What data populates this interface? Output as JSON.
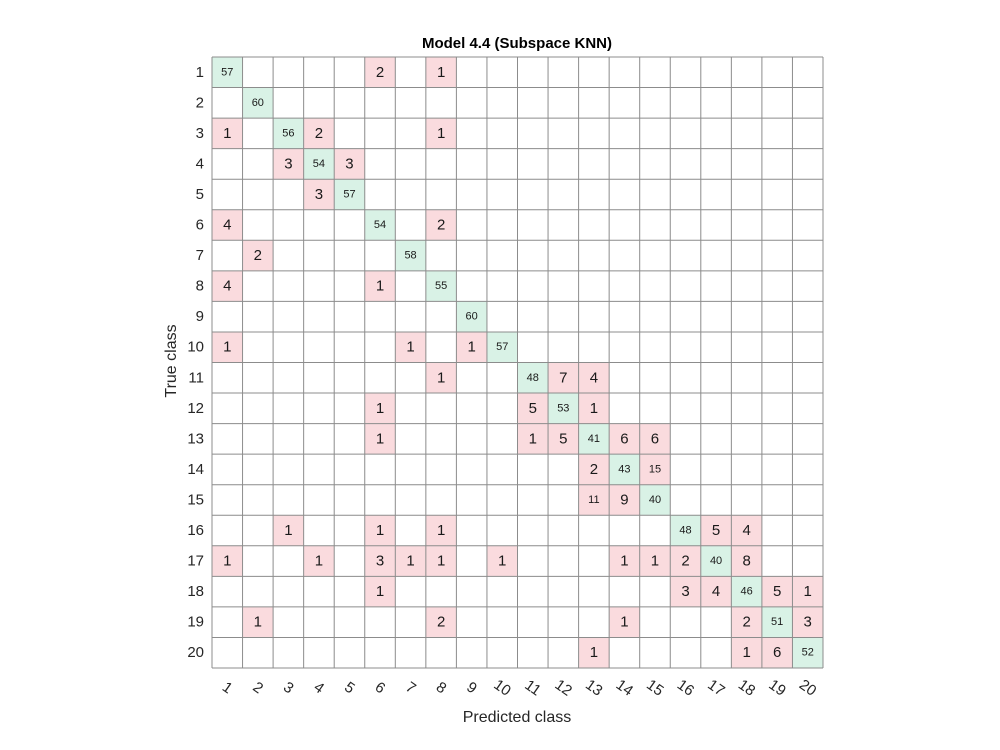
{
  "chart_data": {
    "type": "heatmap",
    "title": "Model 4.4 (Subspace KNN)",
    "xlabel": "Predicted class",
    "ylabel": "True class",
    "classes": [
      "1",
      "2",
      "3",
      "4",
      "5",
      "6",
      "7",
      "8",
      "9",
      "10",
      "11",
      "12",
      "13",
      "14",
      "15",
      "16",
      "17",
      "18",
      "19",
      "20"
    ],
    "cells": [
      [
        1,
        1,
        57
      ],
      [
        1,
        6,
        2
      ],
      [
        1,
        8,
        1
      ],
      [
        2,
        2,
        60
      ],
      [
        3,
        1,
        1
      ],
      [
        3,
        3,
        56
      ],
      [
        3,
        4,
        2
      ],
      [
        3,
        8,
        1
      ],
      [
        4,
        3,
        3
      ],
      [
        4,
        4,
        54
      ],
      [
        4,
        5,
        3
      ],
      [
        5,
        4,
        3
      ],
      [
        5,
        5,
        57
      ],
      [
        6,
        1,
        4
      ],
      [
        6,
        6,
        54
      ],
      [
        6,
        8,
        2
      ],
      [
        7,
        2,
        2
      ],
      [
        7,
        7,
        58
      ],
      [
        8,
        1,
        4
      ],
      [
        8,
        6,
        1
      ],
      [
        8,
        8,
        55
      ],
      [
        9,
        9,
        60
      ],
      [
        10,
        1,
        1
      ],
      [
        10,
        7,
        1
      ],
      [
        10,
        9,
        1
      ],
      [
        10,
        10,
        57
      ],
      [
        11,
        8,
        1
      ],
      [
        11,
        11,
        48
      ],
      [
        11,
        12,
        7
      ],
      [
        11,
        13,
        4
      ],
      [
        12,
        6,
        1
      ],
      [
        12,
        11,
        5
      ],
      [
        12,
        12,
        53
      ],
      [
        12,
        13,
        1
      ],
      [
        13,
        6,
        1
      ],
      [
        13,
        11,
        1
      ],
      [
        13,
        12,
        5
      ],
      [
        13,
        13,
        41
      ],
      [
        13,
        14,
        6
      ],
      [
        13,
        15,
        6
      ],
      [
        14,
        13,
        2
      ],
      [
        14,
        14,
        43
      ],
      [
        14,
        15,
        15
      ],
      [
        15,
        13,
        11
      ],
      [
        15,
        14,
        9
      ],
      [
        15,
        15,
        40
      ],
      [
        16,
        3,
        1
      ],
      [
        16,
        6,
        1
      ],
      [
        16,
        8,
        1
      ],
      [
        16,
        16,
        48
      ],
      [
        16,
        17,
        5
      ],
      [
        16,
        18,
        4
      ],
      [
        17,
        1,
        1
      ],
      [
        17,
        4,
        1
      ],
      [
        17,
        6,
        3
      ],
      [
        17,
        7,
        1
      ],
      [
        17,
        8,
        1
      ],
      [
        17,
        10,
        1
      ],
      [
        17,
        14,
        1
      ],
      [
        17,
        15,
        1
      ],
      [
        17,
        16,
        2
      ],
      [
        17,
        17,
        40
      ],
      [
        17,
        18,
        8
      ],
      [
        18,
        6,
        1
      ],
      [
        18,
        16,
        3
      ],
      [
        18,
        17,
        4
      ],
      [
        18,
        18,
        46
      ],
      [
        18,
        19,
        5
      ],
      [
        18,
        20,
        1
      ],
      [
        19,
        2,
        1
      ],
      [
        19,
        8,
        2
      ],
      [
        19,
        14,
        1
      ],
      [
        19,
        18,
        2
      ],
      [
        19,
        19,
        51
      ],
      [
        19,
        20,
        3
      ],
      [
        20,
        13,
        1
      ],
      [
        20,
        18,
        1
      ],
      [
        20,
        19,
        6
      ],
      [
        20,
        20,
        52
      ]
    ],
    "colors": {
      "correct": "#d9f2e6",
      "incorrect": "#fadbde",
      "grid": "#8c8c8c",
      "text": "#1a1a1a"
    }
  }
}
